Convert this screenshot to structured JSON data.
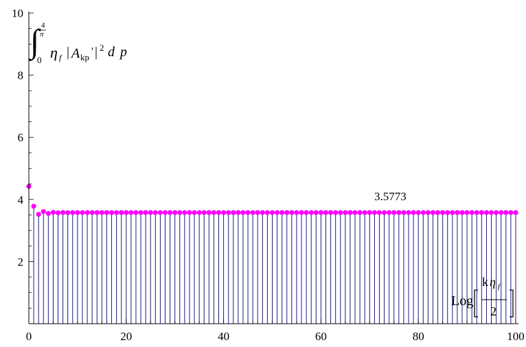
{
  "chart_data": {
    "type": "stem",
    "title": "",
    "xlabel": "Log[kη_f / 2]",
    "ylabel": "∫_0^{4/π} η_f |A_kp'|^2 d p",
    "xlim": [
      0,
      100
    ],
    "ylim": [
      0,
      10
    ],
    "xticks": [
      0,
      20,
      40,
      60,
      80,
      100
    ],
    "yticks": [
      2,
      4,
      6,
      8,
      10
    ],
    "annotation": "3.5773",
    "colors": {
      "stem": "#1a1a80",
      "point": "#ff00ff",
      "axis": "#000000"
    },
    "x": [
      0,
      1,
      2,
      3,
      4,
      5,
      6,
      7,
      8,
      9,
      10,
      11,
      12,
      13,
      14,
      15,
      16,
      17,
      18,
      19,
      20,
      21,
      22,
      23,
      24,
      25,
      26,
      27,
      28,
      29,
      30,
      31,
      32,
      33,
      34,
      35,
      36,
      37,
      38,
      39,
      40,
      41,
      42,
      43,
      44,
      45,
      46,
      47,
      48,
      49,
      50,
      51,
      52,
      53,
      54,
      55,
      56,
      57,
      58,
      59,
      60,
      61,
      62,
      63,
      64,
      65,
      66,
      67,
      68,
      69,
      70,
      71,
      72,
      73,
      74,
      75,
      76,
      77,
      78,
      79,
      80,
      81,
      82,
      83,
      84,
      85,
      86,
      87,
      88,
      89,
      90,
      91,
      92,
      93,
      94,
      95,
      96,
      97,
      98,
      99,
      100
    ],
    "y": [
      4.42,
      3.78,
      3.52,
      3.61,
      3.55,
      3.585,
      3.57,
      3.58,
      3.574,
      3.578,
      3.576,
      3.5773,
      3.5773,
      3.5773,
      3.5773,
      3.5773,
      3.5773,
      3.5773,
      3.5773,
      3.5773,
      3.5773,
      3.5773,
      3.5773,
      3.5773,
      3.5773,
      3.5773,
      3.5773,
      3.5773,
      3.5773,
      3.5773,
      3.5773,
      3.5773,
      3.5773,
      3.5773,
      3.5773,
      3.5773,
      3.5773,
      3.5773,
      3.5773,
      3.5773,
      3.5773,
      3.5773,
      3.5773,
      3.5773,
      3.5773,
      3.5773,
      3.5773,
      3.5773,
      3.5773,
      3.5773,
      3.5773,
      3.5773,
      3.5773,
      3.5773,
      3.5773,
      3.5773,
      3.5773,
      3.5773,
      3.5773,
      3.5773,
      3.5773,
      3.5773,
      3.5773,
      3.5773,
      3.5773,
      3.5773,
      3.5773,
      3.5773,
      3.5773,
      3.5773,
      3.5773,
      3.5773,
      3.5773,
      3.5773,
      3.5773,
      3.5773,
      3.5773,
      3.5773,
      3.5773,
      3.5773,
      3.5773,
      3.5773,
      3.5773,
      3.5773,
      3.5773,
      3.5773,
      3.5773,
      3.5773,
      3.5773,
      3.5773,
      3.5773,
      3.5773,
      3.5773,
      3.5773,
      3.5773,
      3.5773,
      3.5773,
      3.5773,
      3.5773,
      3.5773,
      3.5773
    ]
  }
}
